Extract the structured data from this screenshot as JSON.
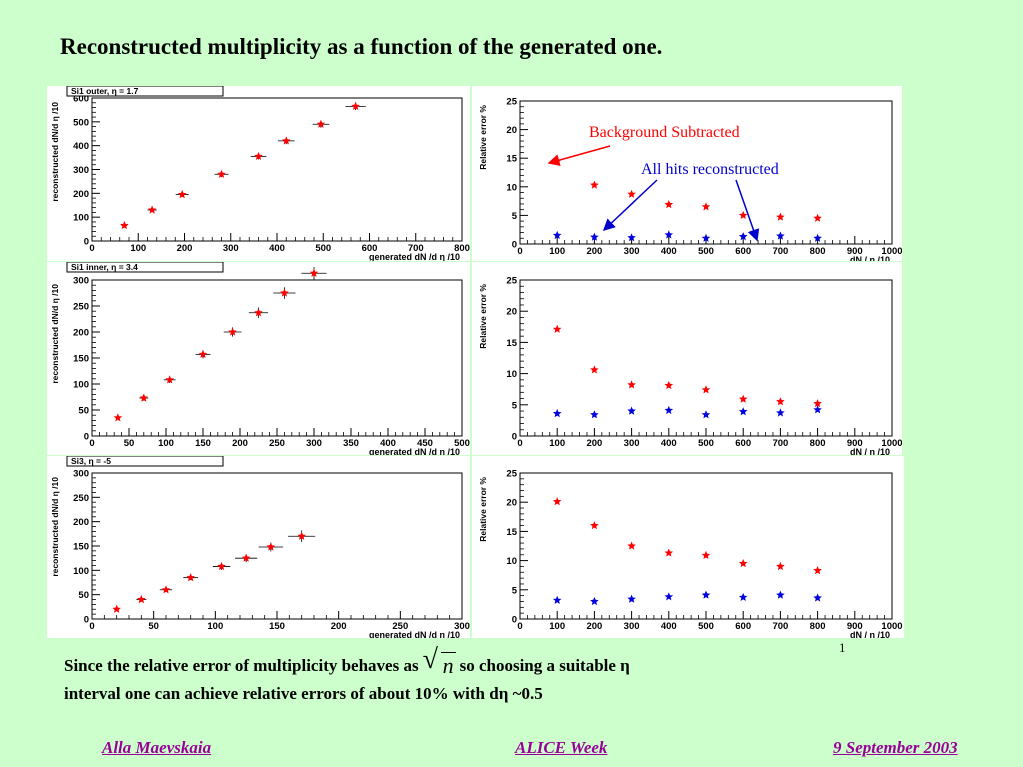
{
  "slide": {
    "title_main": "Reconstructed multiplicity as a function of the generated one",
    "title_dot": ".",
    "annotation_bg": "Background Subtracted",
    "annotation_all": "All hits reconstructed",
    "slide_number": "1",
    "body_part1": "Since the  relative error of multiplicity behaves as",
    "body_sqrt_var": "n",
    "body_part2": "so choosing a suitable η",
    "body_line2": "interval one can achieve relative errors of about 10% with dη ~0.5",
    "footer_left": "Alla Maevskaia",
    "footer_center": "ALICE Week",
    "footer_right": "9 September 2003",
    "colors": {
      "background": "#ccffcc",
      "series_red": "#ff0000",
      "series_blue": "#0000dd",
      "footer": "#990099"
    }
  },
  "chart_data": [
    {
      "id": "si1-outer-mult",
      "type": "scatter",
      "stat_label": "Si1 outer,  η = 1.7",
      "xlabel": "generated  dN /d η /10",
      "ylabel": "reconstructed dN/d η /10",
      "xlim": [
        0,
        800
      ],
      "ylim": [
        0,
        600
      ],
      "xticks": [
        0,
        100,
        200,
        300,
        400,
        500,
        600,
        700,
        800
      ],
      "yticks": [
        0,
        100,
        200,
        300,
        400,
        500,
        600
      ],
      "series": [
        {
          "color": "#ff0000",
          "x": [
            70,
            130,
            195,
            280,
            360,
            420,
            495,
            570
          ],
          "y": [
            65,
            130,
            195,
            280,
            355,
            420,
            490,
            565
          ],
          "xerr": [
            6,
            10,
            14,
            15,
            17,
            18,
            18,
            22
          ],
          "yerr": [
            5,
            8,
            10,
            12,
            13,
            14,
            15,
            16
          ]
        }
      ]
    },
    {
      "id": "si1-outer-err",
      "type": "scatter",
      "xlabel": "dN / η /10",
      "ylabel": "Relative error %",
      "xlim": [
        0,
        1000
      ],
      "ylim": [
        0,
        25
      ],
      "xticks": [
        0,
        100,
        200,
        300,
        400,
        500,
        600,
        700,
        800,
        900,
        1000
      ],
      "yticks": [
        0,
        5,
        10,
        15,
        20,
        25
      ],
      "series": [
        {
          "color": "#ff0000",
          "x": [
            100,
            200,
            300,
            400,
            500,
            600,
            700,
            800
          ],
          "y": [
            14.5,
            10.3,
            8.7,
            6.9,
            6.5,
            5.0,
            4.7,
            4.5
          ]
        },
        {
          "color": "#0000dd",
          "x": [
            100,
            200,
            300,
            400,
            500,
            600,
            700,
            800
          ],
          "y": [
            1.5,
            1.2,
            1.1,
            1.6,
            1.0,
            1.3,
            1.4,
            1.0
          ]
        }
      ]
    },
    {
      "id": "si1-inner-mult",
      "type": "scatter",
      "stat_label": "Si1 inner,  η = 3.4",
      "xlabel": "generated  dN /d η /10",
      "ylabel": "reconstructed dN/d η /10",
      "xlim": [
        0,
        500
      ],
      "ylim": [
        0,
        300
      ],
      "xticks": [
        0,
        50,
        100,
        150,
        200,
        250,
        300,
        350,
        400,
        450,
        500
      ],
      "yticks": [
        0,
        50,
        100,
        150,
        200,
        250,
        300
      ],
      "series": [
        {
          "color": "#ff0000",
          "x": [
            35,
            70,
            105,
            150,
            190,
            225,
            260,
            300
          ],
          "y": [
            35,
            73,
            108,
            157,
            200,
            237,
            275,
            313
          ],
          "xerr": [
            3,
            6,
            8,
            10,
            12,
            13,
            15,
            17
          ],
          "yerr": [
            3,
            5,
            6,
            8,
            9,
            10,
            11,
            12
          ]
        }
      ]
    },
    {
      "id": "si1-inner-err",
      "type": "scatter",
      "xlabel": "dN / η /10",
      "ylabel": "Relative error %",
      "xlim": [
        0,
        1000
      ],
      "ylim": [
        0,
        25
      ],
      "xticks": [
        0,
        100,
        200,
        300,
        400,
        500,
        600,
        700,
        800,
        900,
        1000
      ],
      "yticks": [
        0,
        5,
        10,
        15,
        20,
        25
      ],
      "series": [
        {
          "color": "#ff0000",
          "x": [
            100,
            200,
            300,
            400,
            500,
            600,
            700,
            800
          ],
          "y": [
            17.1,
            10.6,
            8.2,
            8.1,
            7.4,
            5.9,
            5.5,
            5.2
          ]
        },
        {
          "color": "#0000dd",
          "x": [
            100,
            200,
            300,
            400,
            500,
            600,
            700,
            800
          ],
          "y": [
            3.6,
            3.4,
            4.0,
            4.1,
            3.4,
            3.9,
            3.7,
            4.2
          ]
        }
      ]
    },
    {
      "id": "si3-mult",
      "type": "scatter",
      "stat_label": "Si3,  η = -5",
      "xlabel": "generated  dN /d η /10",
      "ylabel": "reconstructed dN/d η /10",
      "xlim": [
        0,
        300
      ],
      "ylim": [
        0,
        300
      ],
      "xticks": [
        0,
        50,
        100,
        150,
        200,
        250,
        300
      ],
      "yticks": [
        0,
        50,
        100,
        150,
        200,
        250,
        300
      ],
      "series": [
        {
          "color": "#ff0000",
          "x": [
            20,
            40,
            60,
            80,
            105,
            125,
            145,
            170
          ],
          "y": [
            20,
            40,
            60,
            85,
            108,
            125,
            148,
            170
          ],
          "xerr": [
            2,
            4,
            5,
            6,
            7,
            9,
            10,
            11
          ],
          "yerr": [
            2,
            3,
            4,
            5,
            7,
            8,
            9,
            12
          ]
        }
      ]
    },
    {
      "id": "si3-err",
      "type": "scatter",
      "xlabel": "dN / η /10",
      "ylabel": "Relative error %",
      "xlim": [
        0,
        1000
      ],
      "ylim": [
        0,
        25
      ],
      "xticks": [
        0,
        100,
        200,
        300,
        400,
        500,
        600,
        700,
        800,
        900,
        1000
      ],
      "yticks": [
        0,
        5,
        10,
        15,
        20,
        25
      ],
      "series": [
        {
          "color": "#ff0000",
          "x": [
            100,
            200,
            300,
            400,
            500,
            600,
            700,
            800
          ],
          "y": [
            20.1,
            16.0,
            12.5,
            11.3,
            10.9,
            9.5,
            9.0,
            8.3
          ]
        },
        {
          "color": "#0000dd",
          "x": [
            100,
            200,
            300,
            400,
            500,
            600,
            700,
            800
          ],
          "y": [
            3.2,
            3.0,
            3.4,
            3.8,
            4.1,
            3.7,
            4.1,
            3.6
          ]
        }
      ]
    }
  ]
}
